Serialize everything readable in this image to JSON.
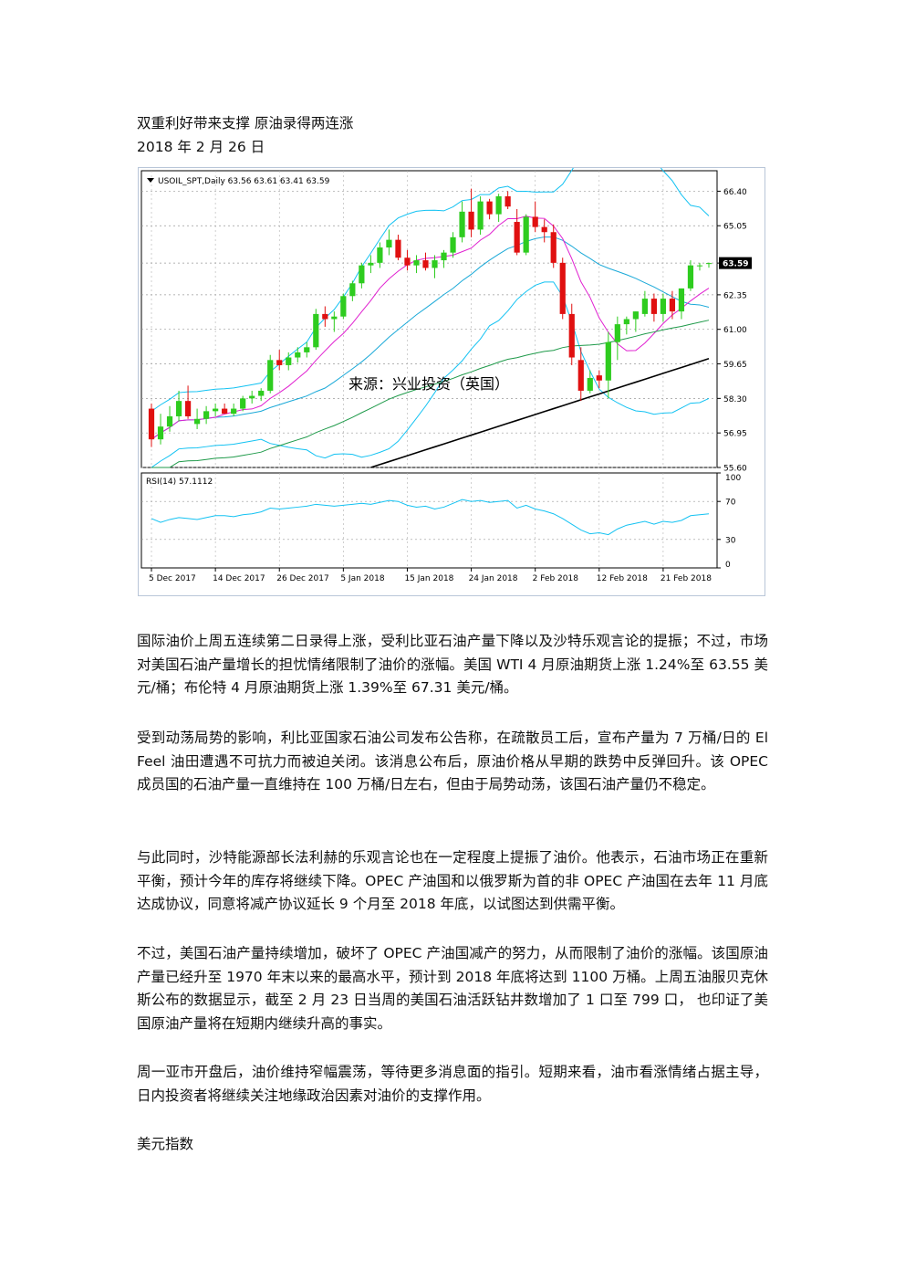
{
  "article": {
    "title": "双重利好带来支撑 原油录得两连涨",
    "date": "2018 年 2 月 26 日",
    "paragraphs": [
      "国际油价上周五连续第二日录得上涨，受利比亚石油产量下降以及沙特乐观言论的提振；不过，市场对美国石油产量增长的担忧情绪限制了油价的涨幅。美国 WTI 4 月原油期货上涨 1.24%至 63.55 美元/桶；布伦特 4 月原油期货上涨 1.39%至 67.31 美元/桶。",
      "受到动荡局势的影响，利比亚国家石油公司发布公告称，在疏散员工后，宣布产量为 7 万桶/日的 El Feel 油田遭遇不可抗力而被迫关闭。该消息公布后，原油价格从早期的跌势中反弹回升。该 OPEC 成员国的石油产量一直维持在 100 万桶/日左右，但由于局势动荡，该国石油产量仍不稳定。",
      "与此同时，沙特能源部长法利赫的乐观言论也在一定程度上提振了油价。他表示，石油市场正在重新平衡，预计今年的库存将继续下降。OPEC 产油国和以俄罗斯为首的非 OPEC 产油国在去年 11 月底达成协议，同意将减产协议延长 9 个月至 2018 年底，以试图达到供需平衡。",
      "不过，美国石油产量持续增加，破坏了 OPEC 产油国减产的努力，从而限制了油价的涨幅。该国原油产量已经升至 1970 年末以来的最高水平，预计到 2018 年底将达到 1100 万桶。上周五油服贝克休斯公布的数据显示，截至 2 月 23 日当周的美国石油活跃钻井数增加了 1 口至 799 口， 也印证了美国原油产量将在短期内继续升高的事实。",
      "周一亚市开盘后，油价维持窄幅震荡，等待更多消息面的指引。短期来看，油市看涨情绪占据主导，日内投资者将继续关注地缘政治因素对油价的支撑作用。"
    ],
    "section_heading": "美元指数"
  },
  "chart_data": {
    "type": "candlestick",
    "header": "USOIL_SPT,Daily  63.56 63.61 63.41 63.59",
    "watermark": "来源：兴业投资（英国）",
    "price_ticks": [
      "66.40",
      "65.05",
      "63.59",
      "62.35",
      "61.00",
      "59.65",
      "58.30",
      "56.95",
      "55.60"
    ],
    "price_tick_values": [
      66.4,
      65.05,
      63.59,
      62.35,
      61.0,
      59.65,
      58.3,
      56.95,
      55.6
    ],
    "current_price": "63.59",
    "ylim": [
      55.6,
      67.2
    ],
    "x_labels": [
      "5 Dec 2017",
      "14 Dec 2017",
      "26 Dec 2017",
      "5 Jan 2018",
      "15 Jan 2018",
      "24 Jan 2018",
      "2 Feb 2018",
      "12 Feb 2018",
      "21 Feb 2018"
    ],
    "candles": [
      [
        57.9,
        58.1,
        56.4,
        56.7
      ],
      [
        56.7,
        57.7,
        56.5,
        57.2
      ],
      [
        57.2,
        58.0,
        57.0,
        57.6
      ],
      [
        57.6,
        58.6,
        57.4,
        58.2
      ],
      [
        58.2,
        58.8,
        57.5,
        57.6
      ],
      [
        57.3,
        57.9,
        57.1,
        57.5
      ],
      [
        57.5,
        58.0,
        57.3,
        57.8
      ],
      [
        57.8,
        58.1,
        57.6,
        57.9
      ],
      [
        57.9,
        58.1,
        57.7,
        57.7
      ],
      [
        57.7,
        58.1,
        57.6,
        57.9
      ],
      [
        57.9,
        58.4,
        57.8,
        58.3
      ],
      [
        58.3,
        58.6,
        58.1,
        58.4
      ],
      [
        58.4,
        58.7,
        58.2,
        58.6
      ],
      [
        58.6,
        60.0,
        58.5,
        59.8
      ],
      [
        59.8,
        60.2,
        59.4,
        59.6
      ],
      [
        59.6,
        60.1,
        59.4,
        59.9
      ],
      [
        59.9,
        60.3,
        59.7,
        60.1
      ],
      [
        60.1,
        60.5,
        59.9,
        60.3
      ],
      [
        60.3,
        61.8,
        60.2,
        61.6
      ],
      [
        61.6,
        61.9,
        61.1,
        61.4
      ],
      [
        61.4,
        61.7,
        60.9,
        61.5
      ],
      [
        61.5,
        62.4,
        61.4,
        62.3
      ],
      [
        62.3,
        62.9,
        62.1,
        62.8
      ],
      [
        62.8,
        63.6,
        62.6,
        63.5
      ],
      [
        63.5,
        63.9,
        63.2,
        63.6
      ],
      [
        63.6,
        64.4,
        63.4,
        64.2
      ],
      [
        64.2,
        64.9,
        63.9,
        64.5
      ],
      [
        64.5,
        64.7,
        63.7,
        63.8
      ],
      [
        63.8,
        64.1,
        63.3,
        63.5
      ],
      [
        63.5,
        63.9,
        63.2,
        63.7
      ],
      [
        63.7,
        64.0,
        63.3,
        63.4
      ],
      [
        63.4,
        63.9,
        63.0,
        63.7
      ],
      [
        63.7,
        64.1,
        63.4,
        64.0
      ],
      [
        64.0,
        64.8,
        63.8,
        64.6
      ],
      [
        64.6,
        66.0,
        64.4,
        65.6
      ],
      [
        65.6,
        66.5,
        64.6,
        64.9
      ],
      [
        64.9,
        66.2,
        64.7,
        66.0
      ],
      [
        66.0,
        66.1,
        65.3,
        65.5
      ],
      [
        65.5,
        66.3,
        65.2,
        66.2
      ],
      [
        66.2,
        66.4,
        65.7,
        65.8
      ],
      [
        65.2,
        65.7,
        63.9,
        64.0
      ],
      [
        64.0,
        65.5,
        63.9,
        65.4
      ],
      [
        65.4,
        66.0,
        64.8,
        65.0
      ],
      [
        65.0,
        65.3,
        64.4,
        64.8
      ],
      [
        64.8,
        65.1,
        63.4,
        63.6
      ],
      [
        63.6,
        63.8,
        61.4,
        61.6
      ],
      [
        61.6,
        62.0,
        59.6,
        59.9
      ],
      [
        59.8,
        60.3,
        58.2,
        58.6
      ],
      [
        58.6,
        59.4,
        58.5,
        59.1
      ],
      [
        59.2,
        59.4,
        58.7,
        59.0
      ],
      [
        59.0,
        60.9,
        58.3,
        60.5
      ],
      [
        60.5,
        61.5,
        59.8,
        61.2
      ],
      [
        61.2,
        61.5,
        60.8,
        61.4
      ],
      [
        61.4,
        61.7,
        60.9,
        61.7
      ],
      [
        61.6,
        62.5,
        61.5,
        62.2
      ],
      [
        62.2,
        62.4,
        61.3,
        61.6
      ],
      [
        61.6,
        62.4,
        61.3,
        62.2
      ],
      [
        62.2,
        62.5,
        61.4,
        61.7
      ],
      [
        61.7,
        62.6,
        61.4,
        62.6
      ],
      [
        62.6,
        63.7,
        62.5,
        63.5
      ],
      [
        63.5,
        63.6,
        63.3,
        63.5
      ],
      [
        63.56,
        63.61,
        63.41,
        63.59
      ]
    ],
    "rsi": {
      "label": "RSI(14) 57.1112",
      "ticks": [
        "100",
        "70",
        "30",
        "0"
      ],
      "tick_values": [
        100,
        70,
        30,
        0
      ],
      "values": [
        52,
        48,
        51,
        53,
        52,
        51,
        53,
        55,
        55,
        54,
        56,
        57,
        59,
        63,
        62,
        63,
        64,
        65,
        67,
        66,
        65,
        66,
        67,
        68,
        67,
        69,
        71,
        70,
        66,
        64,
        65,
        62,
        64,
        68,
        72,
        70,
        71,
        69,
        70,
        71,
        63,
        66,
        62,
        60,
        57,
        52,
        46,
        40,
        36,
        37,
        35,
        41,
        45,
        47,
        49,
        46,
        49,
        48,
        50,
        55,
        56,
        57
      ]
    },
    "indicators": [
      "bollinger-bands",
      "ma-magenta",
      "ma-blue",
      "ma-green",
      "ma-black"
    ],
    "colors": {
      "up": "#2ecc1f",
      "down": "#e01010",
      "bollinger": "#13c2f2",
      "ma_fast": "#e020d0",
      "ma_mid": "#1aa9d8",
      "ma_slow": "#1f9a4a",
      "ma_long": "#000000"
    }
  }
}
